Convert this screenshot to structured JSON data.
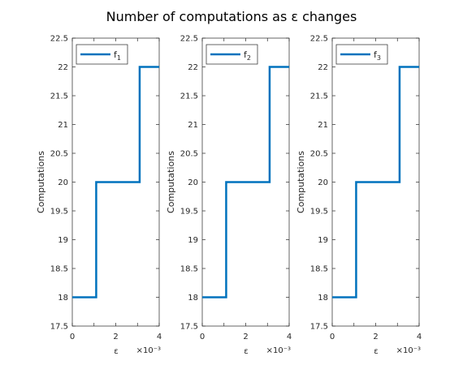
{
  "figure": {
    "title": "Number of computations as ε changes"
  },
  "chart_data": [
    {
      "type": "line",
      "ylabel": "Computations",
      "xlabel": "ε",
      "x_exponent_label": "×10⁻³",
      "xlim": [
        0,
        0.004
      ],
      "ylim": [
        17.5,
        22.5
      ],
      "x_ticks": [
        0,
        0.001,
        0.002,
        0.003,
        0.004
      ],
      "x_tick_labels": [
        "0",
        "",
        "2",
        "",
        "4"
      ],
      "y_ticks": [
        17.5,
        18,
        18.5,
        19,
        19.5,
        20,
        20.5,
        21,
        21.5,
        22,
        22.5
      ],
      "y_tick_labels": [
        "17.5",
        "18",
        "18.5",
        "19",
        "19.5",
        "20",
        "20.5",
        "21",
        "21.5",
        "22",
        "22.5"
      ],
      "grid": false,
      "legend_position": "top-left",
      "series": [
        {
          "name": "f",
          "name_subscript": "1",
          "color": "#0072bd",
          "x": [
            0,
            0.0011,
            0.0011,
            0.0031,
            0.0031,
            0.004
          ],
          "y": [
            18,
            18,
            20,
            20,
            22,
            22
          ]
        }
      ]
    },
    {
      "type": "line",
      "ylabel": "Computations",
      "xlabel": "ε",
      "x_exponent_label": "×10⁻³",
      "xlim": [
        0,
        0.004
      ],
      "ylim": [
        17.5,
        22.5
      ],
      "x_ticks": [
        0,
        0.001,
        0.002,
        0.003,
        0.004
      ],
      "x_tick_labels": [
        "0",
        "",
        "2",
        "",
        "4"
      ],
      "y_ticks": [
        17.5,
        18,
        18.5,
        19,
        19.5,
        20,
        20.5,
        21,
        21.5,
        22,
        22.5
      ],
      "y_tick_labels": [
        "17.5",
        "18",
        "18.5",
        "19",
        "19.5",
        "20",
        "20.5",
        "21",
        "21.5",
        "22",
        "22.5"
      ],
      "grid": false,
      "legend_position": "top-left",
      "series": [
        {
          "name": "f",
          "name_subscript": "2",
          "color": "#0072bd",
          "x": [
            0,
            0.0011,
            0.0011,
            0.0031,
            0.0031,
            0.004
          ],
          "y": [
            18,
            18,
            20,
            20,
            22,
            22
          ]
        }
      ]
    },
    {
      "type": "line",
      "ylabel": "Computations",
      "xlabel": "ε",
      "x_exponent_label": "×10⁻³",
      "xlim": [
        0,
        0.004
      ],
      "ylim": [
        17.5,
        22.5
      ],
      "x_ticks": [
        0,
        0.001,
        0.002,
        0.003,
        0.004
      ],
      "x_tick_labels": [
        "0",
        "",
        "2",
        "",
        "4"
      ],
      "y_ticks": [
        17.5,
        18,
        18.5,
        19,
        19.5,
        20,
        20.5,
        21,
        21.5,
        22,
        22.5
      ],
      "y_tick_labels": [
        "17.5",
        "18",
        "18.5",
        "19",
        "19.5",
        "20",
        "20.5",
        "21",
        "21.5",
        "22",
        "22.5"
      ],
      "grid": false,
      "legend_position": "top-left",
      "series": [
        {
          "name": "f",
          "name_subscript": "3",
          "color": "#0072bd",
          "x": [
            0,
            0.0011,
            0.0011,
            0.0031,
            0.0031,
            0.004
          ],
          "y": [
            18,
            18,
            20,
            20,
            22,
            22
          ]
        }
      ]
    }
  ]
}
